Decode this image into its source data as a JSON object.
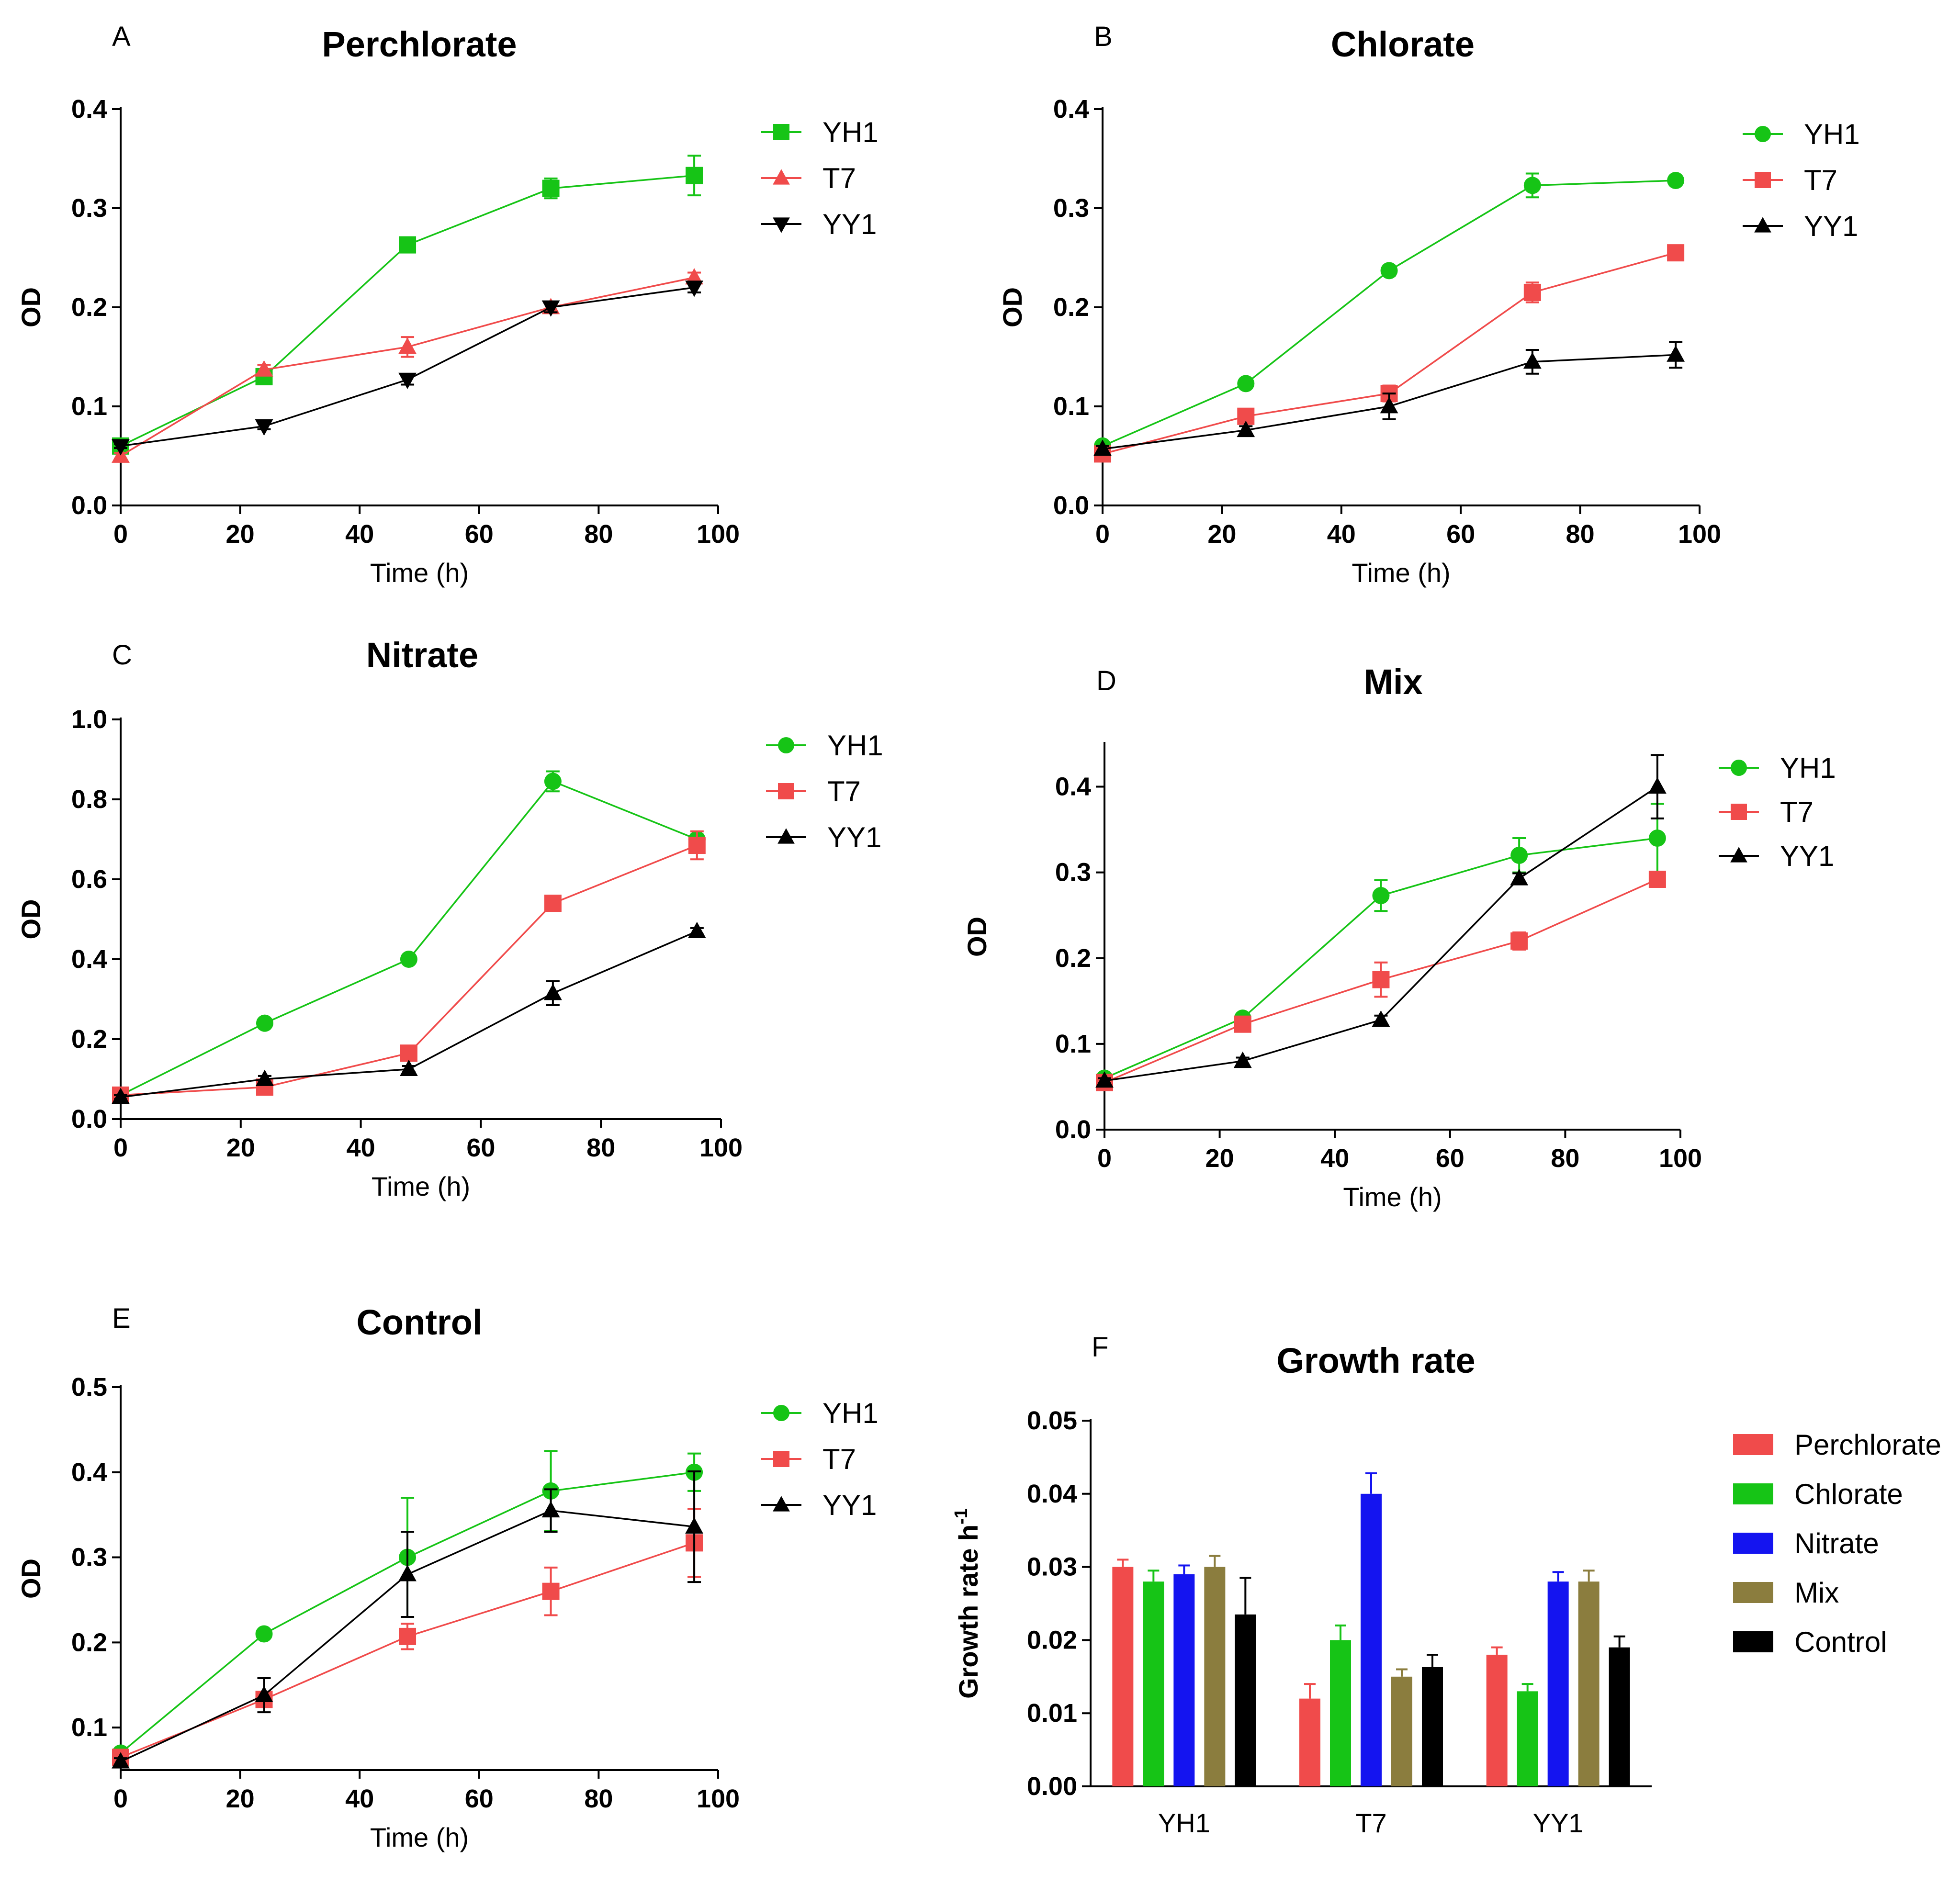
{
  "figure": {
    "panel_count": 6
  },
  "chart_data": [
    {
      "letter": "A",
      "type": "line",
      "title": "Perchlorate",
      "xlabel": "Time (h)",
      "ylabel": "OD",
      "xlim": [
        0,
        100
      ],
      "ylim": [
        0,
        0.4
      ],
      "xticks": [
        0,
        20,
        40,
        60,
        80,
        100
      ],
      "xtick_labels": [
        "0",
        "20",
        "40",
        "60",
        "80",
        "100"
      ],
      "yticks": [
        0,
        0.1,
        0.2,
        0.3,
        0.4
      ],
      "ytick_labels": [
        "0.0",
        "0.1",
        "0.2",
        "0.3",
        "0.4"
      ],
      "x": [
        0,
        24,
        48,
        72,
        96
      ],
      "series": [
        {
          "name": "YH1",
          "color": "#16c416",
          "marker": "square",
          "values": [
            0.06,
            0.13,
            0.263,
            0.32,
            0.333
          ],
          "errors": [
            0.003,
            0.005,
            0.005,
            0.01,
            0.02
          ]
        },
        {
          "name": "T7",
          "color": "#f04b4b",
          "marker": "triangle-up",
          "values": [
            0.05,
            0.137,
            0.16,
            0.2,
            0.23
          ],
          "errors": [
            0.003,
            0.005,
            0.01,
            0.005,
            0.005
          ]
        },
        {
          "name": "YY1",
          "color": "#000000",
          "marker": "triangle-down",
          "values": [
            0.06,
            0.08,
            0.127,
            0.2,
            0.22
          ],
          "errors": [
            0.002,
            0.003,
            0.005,
            0.005,
            0.005
          ]
        }
      ]
    },
    {
      "letter": "B",
      "type": "line",
      "title": "Chlorate",
      "xlabel": "Time (h)",
      "ylabel": "OD",
      "xlim": [
        0,
        100
      ],
      "ylim": [
        0,
        0.4
      ],
      "xticks": [
        0,
        20,
        40,
        60,
        80,
        100
      ],
      "xtick_labels": [
        "0",
        "20",
        "40",
        "60",
        "80",
        "100"
      ],
      "yticks": [
        0,
        0.1,
        0.2,
        0.3,
        0.4
      ],
      "ytick_labels": [
        "0.0",
        "0.1",
        "0.2",
        "0.3",
        "0.4"
      ],
      "x": [
        0,
        24,
        48,
        72,
        96
      ],
      "series": [
        {
          "name": "YH1",
          "color": "#16c416",
          "marker": "circle",
          "values": [
            0.06,
            0.123,
            0.237,
            0.323,
            0.328
          ],
          "errors": [
            0.003,
            0.004,
            0.005,
            0.012,
            0.004
          ]
        },
        {
          "name": "T7",
          "color": "#f04b4b",
          "marker": "square",
          "values": [
            0.052,
            0.09,
            0.113,
            0.215,
            0.255
          ],
          "errors": [
            0.003,
            0.005,
            0.008,
            0.01,
            0.005
          ]
        },
        {
          "name": "YY1",
          "color": "#000000",
          "marker": "triangle-up",
          "values": [
            0.057,
            0.076,
            0.1,
            0.145,
            0.152
          ],
          "errors": [
            0.003,
            0.004,
            0.013,
            0.012,
            0.013
          ]
        }
      ]
    },
    {
      "letter": "C",
      "type": "line",
      "title": "Nitrate",
      "xlabel": "Time (h)",
      "ylabel": "OD",
      "xlim": [
        0,
        100
      ],
      "ylim": [
        0,
        1.0
      ],
      "xticks": [
        0,
        20,
        40,
        60,
        80,
        100
      ],
      "xtick_labels": [
        "0",
        "20",
        "40",
        "60",
        "80",
        "100"
      ],
      "yticks": [
        0,
        0.2,
        0.4,
        0.6,
        0.8,
        1.0
      ],
      "ytick_labels": [
        "0.0",
        "0.2",
        "0.4",
        "0.6",
        "0.8",
        "1.0"
      ],
      "x": [
        0,
        24,
        48,
        72,
        96
      ],
      "series": [
        {
          "name": "YH1",
          "color": "#16c416",
          "marker": "circle",
          "values": [
            0.06,
            0.24,
            0.4,
            0.845,
            0.7
          ],
          "errors": [
            0.005,
            0.008,
            0.008,
            0.025,
            0.012
          ]
        },
        {
          "name": "T7",
          "color": "#f04b4b",
          "marker": "square",
          "values": [
            0.06,
            0.08,
            0.165,
            0.54,
            0.685
          ],
          "errors": [
            0.005,
            0.008,
            0.01,
            0.012,
            0.035
          ]
        },
        {
          "name": "YY1",
          "color": "#000000",
          "marker": "triangle-up",
          "values": [
            0.055,
            0.1,
            0.125,
            0.315,
            0.47
          ],
          "errors": [
            0.005,
            0.008,
            0.008,
            0.03,
            0.008
          ]
        }
      ]
    },
    {
      "letter": "D",
      "type": "line",
      "title": "Mix",
      "xlabel": "Time (h)",
      "ylabel": "OD",
      "xlim": [
        0,
        100
      ],
      "ylim": [
        0,
        0.45
      ],
      "xticks": [
        0,
        20,
        40,
        60,
        80,
        100
      ],
      "xtick_labels": [
        "0",
        "20",
        "40",
        "60",
        "80",
        "100"
      ],
      "yticks": [
        0,
        0.1,
        0.2,
        0.3,
        0.4
      ],
      "ytick_labels": [
        "0.0",
        "0.1",
        "0.2",
        "0.3",
        "0.4"
      ],
      "x": [
        0,
        24,
        48,
        72,
        96
      ],
      "series": [
        {
          "name": "YH1",
          "color": "#16c416",
          "marker": "circle",
          "values": [
            0.06,
            0.13,
            0.273,
            0.32,
            0.34
          ],
          "errors": [
            0.004,
            0.005,
            0.018,
            0.02,
            0.04
          ]
        },
        {
          "name": "T7",
          "color": "#f04b4b",
          "marker": "square",
          "values": [
            0.055,
            0.123,
            0.175,
            0.22,
            0.292
          ],
          "errors": [
            0.004,
            0.006,
            0.02,
            0.01,
            0.008
          ]
        },
        {
          "name": "YY1",
          "color": "#000000",
          "marker": "triangle-up",
          "values": [
            0.057,
            0.08,
            0.128,
            0.293,
            0.4
          ],
          "errors": [
            0.003,
            0.004,
            0.005,
            0.006,
            0.037
          ]
        }
      ]
    },
    {
      "letter": "E",
      "type": "line",
      "title": "Control",
      "xlabel": "Time (h)",
      "ylabel": "OD",
      "xlim": [
        0,
        100
      ],
      "ylim": [
        0.05,
        0.5
      ],
      "xticks": [
        0,
        20,
        40,
        60,
        80,
        100
      ],
      "xtick_labels": [
        "0",
        "20",
        "40",
        "60",
        "80",
        "100"
      ],
      "yticks": [
        0.1,
        0.2,
        0.3,
        0.4,
        0.5
      ],
      "ytick_labels": [
        "0.1",
        "0.2",
        "0.3",
        "0.4",
        "0.5"
      ],
      "x": [
        0,
        24,
        48,
        72,
        96
      ],
      "series": [
        {
          "name": "YH1",
          "color": "#16c416",
          "marker": "circle",
          "values": [
            0.07,
            0.21,
            0.3,
            0.378,
            0.4
          ],
          "errors": [
            0.004,
            0.005,
            0.07,
            0.047,
            0.022
          ]
        },
        {
          "name": "T7",
          "color": "#f04b4b",
          "marker": "square",
          "values": [
            0.065,
            0.133,
            0.207,
            0.26,
            0.317
          ],
          "errors": [
            0.004,
            0.008,
            0.015,
            0.028,
            0.04
          ]
        },
        {
          "name": "YY1",
          "color": "#000000",
          "marker": "triangle-up",
          "values": [
            0.06,
            0.138,
            0.28,
            0.355,
            0.336
          ],
          "errors": [
            0.004,
            0.02,
            0.05,
            0.025,
            0.065
          ]
        }
      ]
    },
    {
      "letter": "F",
      "type": "bar",
      "title": "Growth rate",
      "xlabel": "",
      "ylabel": "Growth rate  h",
      "ylabel_superscript": "-1",
      "ylim": [
        0,
        0.05
      ],
      "yticks": [
        0,
        0.01,
        0.02,
        0.03,
        0.04,
        0.05
      ],
      "ytick_labels": [
        "0.00",
        "0.01",
        "0.02",
        "0.03",
        "0.04",
        "0.05"
      ],
      "categories": [
        "YH1",
        "T7",
        "YY1"
      ],
      "series": [
        {
          "name": "Perchlorate",
          "color": "#f04b4b",
          "values": [
            0.03,
            0.012,
            0.018
          ],
          "errors": [
            0.001,
            0.002,
            0.001
          ]
        },
        {
          "name": "Chlorate",
          "color": "#16c416",
          "values": [
            0.028,
            0.02,
            0.013
          ],
          "errors": [
            0.0015,
            0.002,
            0.001
          ]
        },
        {
          "name": "Nitrate",
          "color": "#1414f0",
          "values": [
            0.029,
            0.04,
            0.028
          ],
          "errors": [
            0.0012,
            0.0028,
            0.0013
          ]
        },
        {
          "name": "Mix",
          "color": "#8b7d3e",
          "values": [
            0.03,
            0.015,
            0.028
          ],
          "errors": [
            0.0015,
            0.001,
            0.0015
          ]
        },
        {
          "name": "Control",
          "color": "#000000",
          "values": [
            0.0235,
            0.0163,
            0.019
          ],
          "errors": [
            0.005,
            0.0017,
            0.0015
          ]
        }
      ]
    }
  ]
}
